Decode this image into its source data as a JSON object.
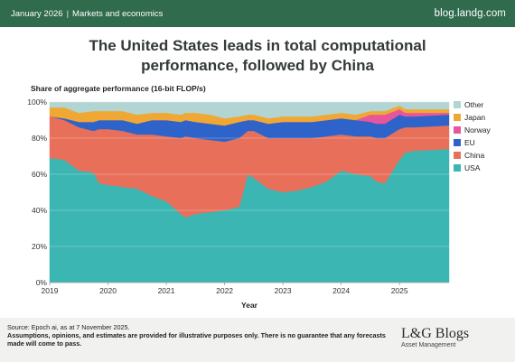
{
  "header": {
    "date": "January 2026",
    "separator": "|",
    "section": "Markets and economics",
    "site": "blog.landg.com"
  },
  "title_line1": "The United States leads in total computational",
  "title_line2": "performance, followed by China",
  "footer": {
    "source": "Source: Epoch ai, as at 7 November 2025.",
    "disclaimer": "Assumptions, opinions, and estimates are provided for illustrative purposes only. There is no guarantee that any forecasts made will come to pass.",
    "logo_main": "L&G Blogs",
    "logo_sub": "Asset Management"
  },
  "colors": {
    "brand_green": "#2f6b4c",
    "USA": "#3bb6b2",
    "China": "#e8705b",
    "EU": "#2e63c9",
    "Norway": "#e8559a",
    "Japan": "#efa834",
    "Other": "#b2d4d2"
  },
  "chart_data": {
    "type": "area",
    "stacked": true,
    "title": "The United States leads in total computational performance, followed by China",
    "ylabel": "Share of aggregate performance (16-bit FLOP/s)",
    "xlabel": "Year",
    "ylim": [
      0,
      100
    ],
    "y_ticks": [
      "0%",
      "20%",
      "40%",
      "60%",
      "80%",
      "100%"
    ],
    "x_ticks": [
      "2019",
      "2020",
      "2021",
      "2022",
      "2023",
      "2024",
      "2025"
    ],
    "legend_position": "right",
    "legend_order": [
      "Other",
      "Japan",
      "Norway",
      "EU",
      "China",
      "USA"
    ],
    "x": [
      2019.0,
      2019.25,
      2019.5,
      2019.75,
      2019.85,
      2020.0,
      2020.25,
      2020.5,
      2020.75,
      2021.0,
      2021.25,
      2021.33,
      2021.5,
      2021.75,
      2022.0,
      2022.25,
      2022.4,
      2022.5,
      2022.75,
      2023.0,
      2023.25,
      2023.5,
      2023.75,
      2024.0,
      2024.25,
      2024.5,
      2024.6,
      2024.75,
      2025.0,
      2025.1,
      2025.25,
      2025.85
    ],
    "series": [
      {
        "name": "USA",
        "values": [
          69,
          68,
          62,
          61,
          55,
          54,
          53,
          52,
          48,
          45,
          38,
          36,
          38,
          39,
          40,
          42,
          60,
          58,
          52,
          50,
          51,
          53,
          56,
          62,
          60,
          59,
          56,
          55,
          68,
          72,
          73,
          74
        ]
      },
      {
        "name": "China",
        "values": [
          23,
          22,
          24,
          23,
          30,
          31,
          31,
          30,
          34,
          36,
          42,
          45,
          42,
          40,
          38,
          38,
          24,
          26,
          28,
          30,
          29,
          27,
          25,
          20,
          21,
          22,
          24,
          25,
          17,
          14,
          13,
          13
        ]
      },
      {
        "name": "EU",
        "values": [
          0,
          1,
          3,
          5,
          5,
          5,
          6,
          6,
          8,
          9,
          9,
          9,
          9,
          9,
          9,
          9,
          6,
          6,
          8,
          9,
          9,
          9,
          9,
          9,
          9,
          8,
          8,
          8,
          8,
          6,
          6,
          6
        ]
      },
      {
        "name": "Norway",
        "values": [
          0,
          0,
          0,
          0,
          0,
          0,
          0,
          0,
          0,
          0,
          0,
          0,
          0,
          0,
          0,
          0,
          0,
          0,
          0,
          0,
          0,
          0,
          0,
          0,
          0,
          4,
          5,
          5,
          3,
          2,
          2,
          1
        ]
      },
      {
        "name": "Japan",
        "values": [
          5,
          6,
          5,
          6,
          5,
          5,
          5,
          5,
          4,
          4,
          4,
          4,
          5,
          5,
          4,
          3,
          3,
          3,
          3,
          3,
          3,
          3,
          3,
          3,
          3,
          2,
          2,
          2,
          2,
          2,
          2,
          2
        ]
      },
      {
        "name": "Other",
        "values": [
          3,
          3,
          6,
          5,
          5,
          5,
          5,
          7,
          6,
          6,
          7,
          6,
          6,
          7,
          9,
          8,
          7,
          7,
          9,
          8,
          8,
          8,
          7,
          6,
          7,
          5,
          5,
          5,
          2,
          4,
          4,
          4
        ]
      }
    ]
  }
}
